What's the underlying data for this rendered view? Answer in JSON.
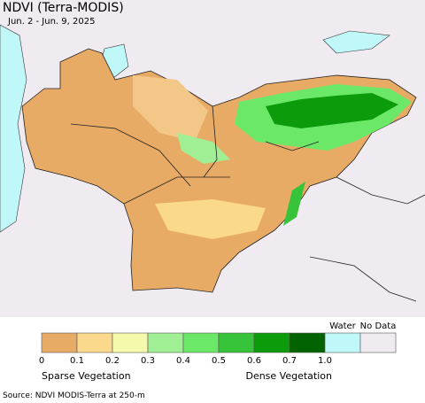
{
  "header": {
    "title": "NDVI (Terra-MODIS)",
    "subtitle": "Jun. 2 - Jun. 9, 2025"
  },
  "legend": {
    "colors": [
      "#e8ab66",
      "#fbd98c",
      "#f4f9ab",
      "#a1ef95",
      "#6ce869",
      "#38c43a",
      "#0b9b0b",
      "#016301"
    ],
    "ticks": [
      "0",
      "0.1",
      "0.2",
      "0.3",
      "0.4",
      "0.5",
      "0.6",
      "0.7",
      "1.0"
    ],
    "extra": [
      {
        "label": "Water",
        "color": "#c0f8fa"
      },
      {
        "label": "No Data",
        "color": "#f0eaf1"
      }
    ],
    "low_label": "Sparse Vegetation",
    "high_label": "Dense Vegetation"
  },
  "footer": {
    "source": "Source: NDVI MODIS-Terra at 250-m"
  }
}
